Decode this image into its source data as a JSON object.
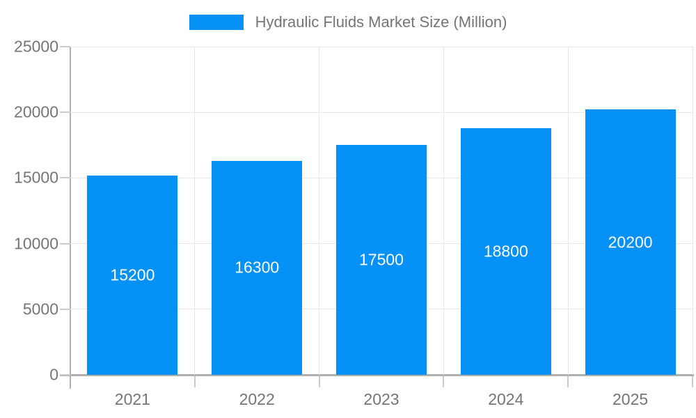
{
  "legend": {
    "label": "Hydraulic Fluids Market Size (Million)"
  },
  "colors": {
    "bar": "#0591f5",
    "axis": "#b0b0b0",
    "grid": "#e6e6e6",
    "tick": "#cccccc",
    "tick_label": "#757575",
    "bar_label": "#ffffff",
    "background": "#ffffff"
  },
  "chart_data": {
    "type": "bar",
    "title": "Hydraulic Fluids Market Size (Million)",
    "categories": [
      "2021",
      "2022",
      "2023",
      "2024",
      "2025"
    ],
    "values": [
      15200,
      16300,
      17500,
      18800,
      20200
    ],
    "series": [
      {
        "name": "Hydraulic Fluids Market Size (Million)",
        "values": [
          15200,
          16300,
          17500,
          18800,
          20200
        ]
      }
    ],
    "xlabel": "",
    "ylabel": "",
    "ylim": [
      0,
      25000
    ],
    "yticks": [
      0,
      5000,
      10000,
      15000,
      20000,
      25000
    ],
    "grid": true,
    "legend_position": "top-center",
    "value_labels_position": "inside-center"
  }
}
